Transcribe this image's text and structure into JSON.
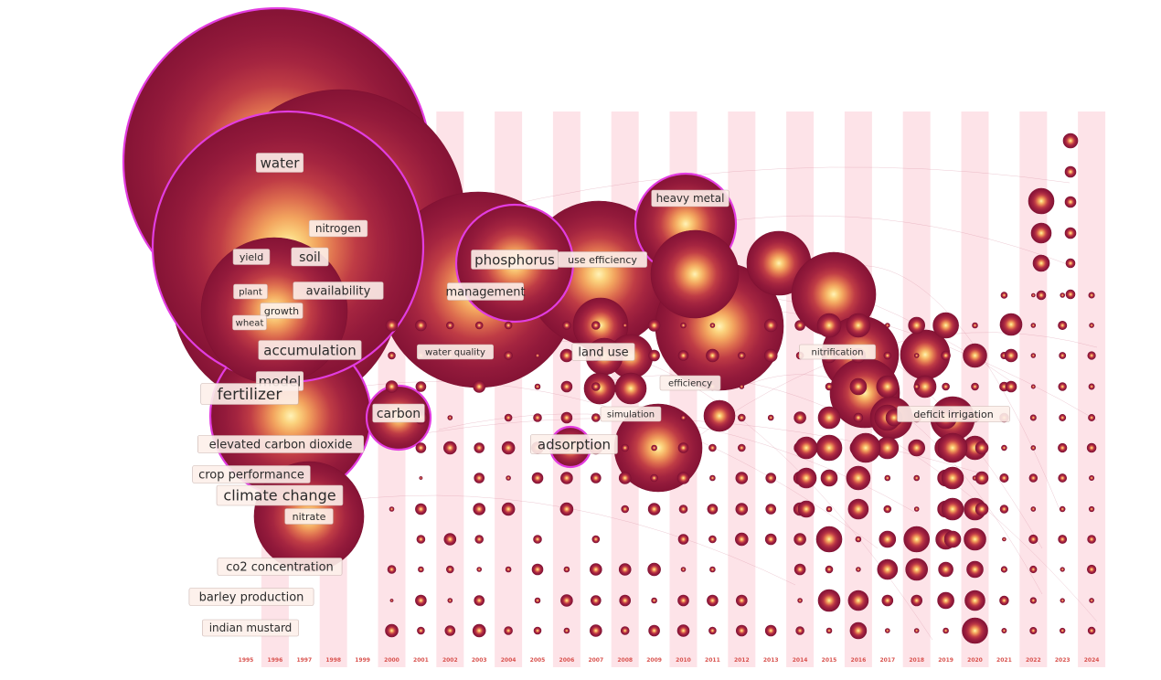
{
  "years": [
    "1995",
    "1996",
    "1997",
    "1998",
    "1999",
    "2000",
    "2001",
    "2002",
    "2003",
    "2004",
    "2005",
    "2006",
    "2007",
    "2008",
    "2009",
    "2010",
    "2011",
    "2012",
    "2013",
    "2014",
    "2015",
    "2016",
    "2017",
    "2018",
    "2019",
    "2020",
    "2021",
    "2022",
    "2023",
    "2024"
  ],
  "keywords": [
    "water",
    "nitrogen",
    "yield",
    "soil",
    "plant",
    "availability",
    "growth",
    "wheat",
    "accumulation",
    "model",
    "fertilizer",
    "elevated carbon dioxide",
    "crop performance",
    "climate change",
    "nitrate",
    "co2 concentration",
    "barley production",
    "indian mustard",
    "carbon",
    "phosphorus",
    "use efficiency",
    "management",
    "water quality",
    "land use",
    "simulation",
    "adsorption",
    "heavy metal",
    "efficiency",
    "nitrification",
    "deficit irrigation"
  ],
  "colors": {
    "band": "#fde3e8",
    "ring_outer": "#8e1539",
    "ring_inner": "#fff3b8",
    "highlight_outline": "#e23de0",
    "year_label": "#d9534f",
    "link": "#d48a9e"
  }
}
